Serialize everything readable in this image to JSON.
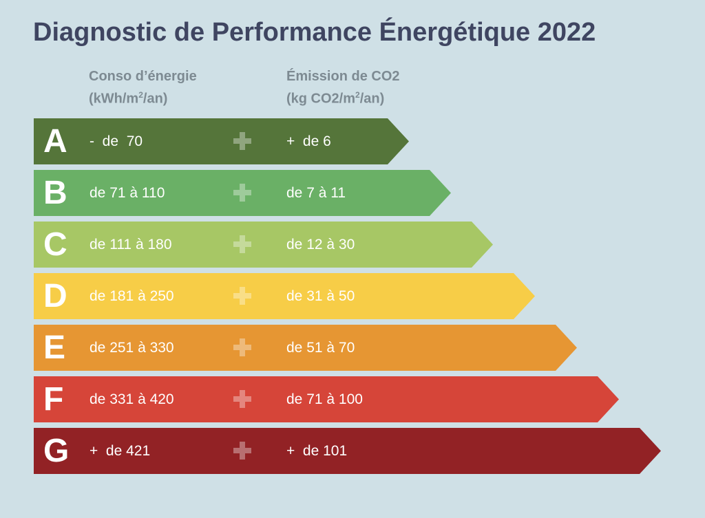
{
  "title": "Diagnostic de Performance Énergétique 2022",
  "headers": {
    "energy_line1": "Conso d’énergie",
    "energy_line2": "(kWh/m",
    "energy_sup": "2",
    "energy_tail": "/an)",
    "co2_line1": "Émission de CO2",
    "co2_line2": "(kg CO2/m",
    "co2_sup": "2",
    "co2_tail": "/an)"
  },
  "classes": [
    {
      "letter": "A",
      "energy": "-  de  70",
      "co2": "+  de 6",
      "color": "#55753a"
    },
    {
      "letter": "B",
      "energy": "de 71 à 110",
      "co2": "de 7 à 11",
      "color": "#6ab066"
    },
    {
      "letter": "C",
      "energy": "de 111 à 180",
      "co2": "de 12 à 30",
      "color": "#a7c765"
    },
    {
      "letter": "D",
      "energy": "de 181 à 250",
      "co2": "de 31 à 50",
      "color": "#f7cd47"
    },
    {
      "letter": "E",
      "energy": "de 251 à 330",
      "co2": "de 51 à 70",
      "color": "#e69633"
    },
    {
      "letter": "F",
      "energy": "de 331 à 420",
      "co2": "de 71 à 100",
      "color": "#d64539"
    },
    {
      "letter": "G",
      "energy": "+  de 421",
      "co2": "+  de 101",
      "color": "#922225"
    }
  ]
}
